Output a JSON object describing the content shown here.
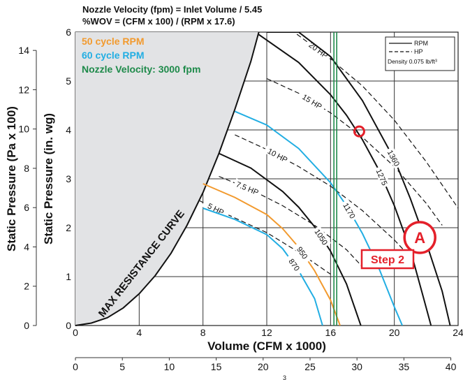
{
  "header": {
    "line1": "Nozzle Velocity (fpm) = Inlet Volume / 5.45",
    "line2": "%WOV = (CFM x 100) / (RPM x 17.6)"
  },
  "colors": {
    "rpm_50": "#f29a2e",
    "rpm_60": "#22aee3",
    "nozzle": "#1e8a4a",
    "marker": "#e4202a",
    "max_resistance_fill": "#e2e3e5"
  },
  "chart_data": {
    "type": "line",
    "title": "",
    "xlabel": "Volume (CFM x 1000)",
    "ylabel": "Static Pressure (in. wg)",
    "ylabel_secondary": "Static Pressure (Pa x 100)",
    "xlim": [
      0,
      24
    ],
    "ylim": [
      0,
      6
    ],
    "x_ticks": [
      "0",
      "4",
      "8",
      "12",
      "16",
      "20",
      "24"
    ],
    "y_ticks": [
      "0",
      "1",
      "2",
      "3",
      "4",
      "5",
      "6"
    ],
    "y2_ticks": [
      "0",
      "2",
      "4",
      "6",
      "8",
      "10",
      "12",
      "14"
    ],
    "x2_ticks": [
      "0",
      "5",
      "10",
      "15",
      "20",
      "25",
      "30",
      "35",
      "40"
    ],
    "x2_label_fragment": "3",
    "grid": true,
    "legend": {
      "rpm_50_label": "50 cycle RPM",
      "rpm_60_label": "60 cycle RPM",
      "nozzle_label": "Nozzle Velocity: 3000 fpm",
      "rpm_line_label": "RPM",
      "hp_line_label": "HP",
      "density_label": "Density 0.075 lb/ft³",
      "placement": "top-right"
    },
    "max_resistance": {
      "label": "MAX RESISTANCE CURVE",
      "points": [
        [
          0,
          0
        ],
        [
          1,
          0.05
        ],
        [
          2,
          0.16
        ],
        [
          3,
          0.36
        ],
        [
          4,
          0.65
        ],
        [
          5,
          1.02
        ],
        [
          6,
          1.48
        ],
        [
          7,
          2.05
        ],
        [
          8,
          2.72
        ],
        [
          9,
          3.52
        ],
        [
          10,
          4.42
        ],
        [
          11,
          5.4
        ],
        [
          11.5,
          6
        ]
      ]
    },
    "rpm_curves": [
      {
        "label": "870",
        "color": "60",
        "points": [
          [
            8,
            2.4
          ],
          [
            10,
            2.17
          ],
          [
            12,
            1.86
          ],
          [
            13,
            1.57
          ],
          [
            14,
            1.12
          ],
          [
            15,
            0.55
          ],
          [
            15.5,
            0
          ]
        ]
      },
      {
        "label": "950",
        "color": "50",
        "points": [
          [
            8,
            2.9
          ],
          [
            10,
            2.62
          ],
          [
            12,
            2.27
          ],
          [
            13,
            1.98
          ],
          [
            14,
            1.6
          ],
          [
            15,
            1.12
          ],
          [
            16,
            0.52
          ],
          [
            16.6,
            0
          ]
        ]
      },
      {
        "label": "1050",
        "color": "black",
        "points": [
          [
            9,
            3.52
          ],
          [
            11,
            3.22
          ],
          [
            13,
            2.74
          ],
          [
            14,
            2.42
          ],
          [
            15,
            2.02
          ],
          [
            16,
            1.52
          ],
          [
            17,
            0.85
          ],
          [
            17.9,
            0
          ]
        ]
      },
      {
        "label": "1170",
        "color": "60",
        "points": [
          [
            10,
            4.38
          ],
          [
            12,
            4.1
          ],
          [
            14,
            3.62
          ],
          [
            16,
            2.92
          ],
          [
            17,
            2.45
          ],
          [
            18,
            1.88
          ],
          [
            19,
            1.2
          ],
          [
            20,
            0.38
          ],
          [
            20.5,
            0
          ]
        ]
      },
      {
        "label": "1275",
        "color": "black",
        "points": [
          [
            11.5,
            5.95
          ],
          [
            14,
            5.38
          ],
          [
            16,
            4.72
          ],
          [
            17,
            4.3
          ],
          [
            18,
            3.8
          ],
          [
            19,
            3.2
          ],
          [
            20,
            2.45
          ],
          [
            21,
            1.55
          ],
          [
            21.8,
            0.6
          ],
          [
            22.3,
            0
          ]
        ]
      },
      {
        "label": "1360",
        "color": "black",
        "points": [
          [
            12,
            6
          ],
          [
            14,
            6
          ],
          [
            16,
            5.5
          ],
          [
            18,
            4.6
          ],
          [
            20,
            3.4
          ],
          [
            21,
            2.6
          ],
          [
            22,
            1.7
          ],
          [
            23,
            0.7
          ],
          [
            23.5,
            0
          ]
        ]
      }
    ],
    "hp_curves": [
      {
        "label": "5 HP",
        "points": [
          [
            7.8,
            2.55
          ],
          [
            9,
            2.35
          ],
          [
            10,
            2.2
          ],
          [
            12,
            1.9
          ],
          [
            14,
            1.5
          ],
          [
            16,
            1.05
          ]
        ]
      },
      {
        "label": "7.5 HP",
        "points": [
          [
            9,
            3.05
          ],
          [
            11,
            2.78
          ],
          [
            13,
            2.45
          ],
          [
            15,
            2.05
          ],
          [
            17,
            1.55
          ],
          [
            18,
            1.2
          ]
        ]
      },
      {
        "label": "10 HP",
        "points": [
          [
            10,
            3.9
          ],
          [
            12,
            3.6
          ],
          [
            14,
            3.25
          ],
          [
            16,
            2.85
          ],
          [
            18,
            2.35
          ],
          [
            20,
            1.75
          ],
          [
            21,
            1.4
          ]
        ]
      },
      {
        "label": "15 HP",
        "points": [
          [
            12,
            5.05
          ],
          [
            14,
            4.75
          ],
          [
            16,
            4.35
          ],
          [
            18,
            3.85
          ],
          [
            20,
            3.25
          ],
          [
            22,
            2.5
          ],
          [
            23,
            2.05
          ]
        ]
      },
      {
        "label": "20 HP",
        "points": [
          [
            13.5,
            6.05
          ],
          [
            16,
            5.45
          ],
          [
            18,
            4.9
          ],
          [
            20,
            4.2
          ],
          [
            22,
            3.35
          ],
          [
            24,
            2.4
          ]
        ]
      }
    ],
    "nozzle_velocity_x": 16.3,
    "operating_point": {
      "x": 17.8,
      "y": 3.97
    },
    "marker_A": {
      "label": "A",
      "x": 21.6,
      "y": 1.8
    },
    "step_label": "Step 2"
  }
}
